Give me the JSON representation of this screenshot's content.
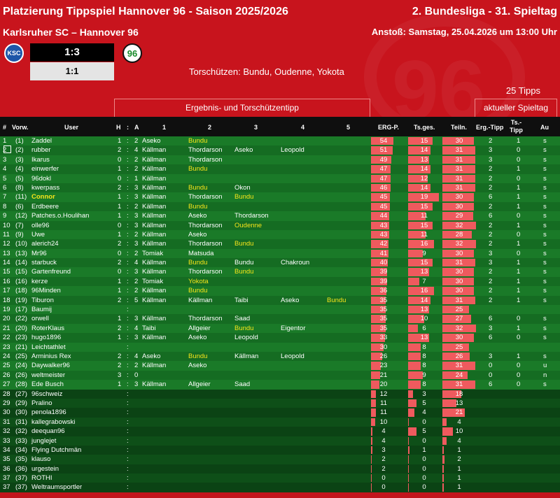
{
  "header": {
    "title": "Platzierung Tippspiel Hannover 96 - Saison 2025/2026",
    "round": "2. Bundesliga - 31. Spieltag",
    "match": "Karlsruher SC – Hannover 96",
    "kickoff": "Anstoß: Samstag, 25.04.2026 um 13:00 Uhr",
    "home_logo": "KSC",
    "away_logo": "96",
    "score_final": "1:3",
    "score_half": "1:1",
    "scorers": "Torschützen: Bundu, Oudenne, Yokota",
    "tipps_count": "25 Tipps",
    "group_tipp": "Ergebnis-  und Torschützentipp",
    "group_current": "aktueller Spieltag"
  },
  "columns": {
    "rank": "#",
    "prev": "Vorw.",
    "user": "User",
    "h": "H",
    "colon": ":",
    "a": "A",
    "s1": "1",
    "s2": "2",
    "s3": "3",
    "s4": "4",
    "s5": "5",
    "erg": "ERG-P.",
    "tsges": "Ts.ges.",
    "teiln": "Teiln.",
    "ergtipp": "Erg.-Tipp",
    "tstipp": "Ts.-\nTipp",
    "au": "Au"
  },
  "colors": {
    "accent": "#c8141d",
    "bar": "#ef5a5e",
    "highlight": "#f6e41a",
    "row_a": "#1a7a28",
    "row_b": "#156c22"
  },
  "rows": [
    {
      "r": "1",
      "p": "(1)",
      "u": "Zaddel",
      "h": "1",
      "a": "2",
      "s": [
        [
          "Aseko",
          0
        ],
        [
          "Bundu",
          1
        ],
        [
          "",
          0
        ],
        [
          "",
          0
        ],
        [
          "",
          0
        ]
      ],
      "erg": 54,
      "ts": 15,
      "tn": 30,
      "et": "2",
      "tt": "1",
      "au": "s"
    },
    {
      "r": "2",
      "p": "(2)",
      "u": "rubber",
      "h": "2",
      "a": "4",
      "s": [
        [
          "Källman",
          0
        ],
        [
          "Thordarson",
          0
        ],
        [
          "Aseko",
          0
        ],
        [
          "Leopold",
          0
        ],
        [
          "",
          0
        ]
      ],
      "erg": 51,
      "ts": 14,
      "tn": 31,
      "et": "3",
      "tt": "0",
      "au": "s",
      "sel": true
    },
    {
      "r": "3",
      "p": "(3)",
      "u": "Ikarus",
      "h": "0",
      "a": "2",
      "s": [
        [
          "Källman",
          0
        ],
        [
          "Thordarson",
          0
        ],
        [
          "",
          0
        ],
        [
          "",
          0
        ],
        [
          "",
          0
        ]
      ],
      "erg": 49,
      "ts": 13,
      "tn": 31,
      "et": "3",
      "tt": "0",
      "au": "s"
    },
    {
      "r": "4",
      "p": "(4)",
      "u": "einwerfer",
      "h": "1",
      "a": "2",
      "s": [
        [
          "Källman",
          0
        ],
        [
          "Bundu",
          1
        ],
        [
          "",
          0
        ],
        [
          "",
          0
        ],
        [
          "",
          0
        ]
      ],
      "erg": 47,
      "ts": 14,
      "tn": 31,
      "et": "2",
      "tt": "1",
      "au": "s"
    },
    {
      "r": "5",
      "p": "(5)",
      "u": "96dokl",
      "h": "0",
      "a": "1",
      "s": [
        [
          "Källman",
          0
        ],
        [
          "",
          0
        ],
        [
          "",
          0
        ],
        [
          "",
          0
        ],
        [
          "",
          0
        ]
      ],
      "erg": 47,
      "ts": 12,
      "tn": 31,
      "et": "2",
      "tt": "0",
      "au": "s"
    },
    {
      "r": "6",
      "p": "(8)",
      "u": "kwerpass",
      "h": "2",
      "a": "3",
      "s": [
        [
          "Källman",
          0
        ],
        [
          "Bundu",
          1
        ],
        [
          "Okon",
          0
        ],
        [
          "",
          0
        ],
        [
          "",
          0
        ]
      ],
      "erg": 46,
      "ts": 14,
      "tn": 31,
      "et": "2",
      "tt": "1",
      "au": "s"
    },
    {
      "r": "7",
      "p": "(11)",
      "u": "Connor",
      "h": "1",
      "a": "3",
      "s": [
        [
          "Källman",
          0
        ],
        [
          "Thordarson",
          0
        ],
        [
          "Bundu",
          1
        ],
        [
          "",
          0
        ],
        [
          "",
          0
        ]
      ],
      "erg": 45,
      "ts": 19,
      "tn": 30,
      "et": "6",
      "tt": "1",
      "au": "s",
      "hl": true
    },
    {
      "r": "8",
      "p": "(6)",
      "u": "Erdbeere",
      "h": "1",
      "a": "2",
      "s": [
        [
          "Källman",
          0
        ],
        [
          "Bundu",
          1
        ],
        [
          "",
          0
        ],
        [
          "",
          0
        ],
        [
          "",
          0
        ]
      ],
      "erg": 45,
      "ts": 15,
      "tn": 30,
      "et": "2",
      "tt": "1",
      "au": "s"
    },
    {
      "r": "9",
      "p": "(12)",
      "u": "Patches.o.Houlihan",
      "h": "1",
      "a": "3",
      "s": [
        [
          "Källman",
          0
        ],
        [
          "Aseko",
          0
        ],
        [
          "Thordarson",
          0
        ],
        [
          "",
          0
        ],
        [
          "",
          0
        ]
      ],
      "erg": 44,
      "ts": 11,
      "tn": 29,
      "et": "6",
      "tt": "0",
      "au": "s"
    },
    {
      "r": "10",
      "p": "(7)",
      "u": "olle96",
      "h": "0",
      "a": "3",
      "s": [
        [
          "Källman",
          0
        ],
        [
          "Thordarson",
          0
        ],
        [
          "Oudenne",
          1
        ],
        [
          "",
          0
        ],
        [
          "",
          0
        ]
      ],
      "erg": 43,
      "ts": 15,
      "tn": 32,
      "et": "2",
      "tt": "1",
      "au": "s"
    },
    {
      "r": "11",
      "p": "(9)",
      "u": "Uwe",
      "h": "1",
      "a": "2",
      "s": [
        [
          "Källman",
          0
        ],
        [
          "Aseko",
          0
        ],
        [
          "",
          0
        ],
        [
          "",
          0
        ],
        [
          "",
          0
        ]
      ],
      "erg": 43,
      "ts": 11,
      "tn": 28,
      "et": "2",
      "tt": "0",
      "au": "s"
    },
    {
      "r": "12",
      "p": "(10)",
      "u": "alerich24",
      "h": "2",
      "a": "3",
      "s": [
        [
          "Källman",
          0
        ],
        [
          "Thordarson",
          0
        ],
        [
          "Bundu",
          1
        ],
        [
          "",
          0
        ],
        [
          "",
          0
        ]
      ],
      "erg": 42,
      "ts": 16,
      "tn": 32,
      "et": "2",
      "tt": "1",
      "au": "s"
    },
    {
      "r": "13",
      "p": "(13)",
      "u": "Mr96",
      "h": "0",
      "a": "2",
      "s": [
        [
          "Tomiak",
          0
        ],
        [
          "Matsuda",
          0
        ],
        [
          "",
          0
        ],
        [
          "",
          0
        ],
        [
          "",
          0
        ]
      ],
      "erg": 41,
      "ts": 9,
      "tn": 30,
      "et": "3",
      "tt": "0",
      "au": "s"
    },
    {
      "r": "14",
      "p": "(14)",
      "u": "starbuck",
      "h": "2",
      "a": "4",
      "s": [
        [
          "Källman",
          0
        ],
        [
          "Bundu",
          1
        ],
        [
          "Bundu",
          0
        ],
        [
          "Chakroun",
          0
        ],
        [
          "",
          0
        ]
      ],
      "erg": 40,
      "ts": 15,
      "tn": 31,
      "et": "3",
      "tt": "1",
      "au": "s"
    },
    {
      "r": "15",
      "p": "(15)",
      "u": "Gartenfreund",
      "h": "0",
      "a": "3",
      "s": [
        [
          "Källman",
          0
        ],
        [
          "Thordarson",
          0
        ],
        [
          "Bundu",
          1
        ],
        [
          "",
          0
        ],
        [
          "",
          0
        ]
      ],
      "erg": 39,
      "ts": 13,
      "tn": 30,
      "et": "2",
      "tt": "1",
      "au": "s"
    },
    {
      "r": "16",
      "p": "(16)",
      "u": "kerze",
      "h": "1",
      "a": "2",
      "s": [
        [
          "Tomiak",
          0
        ],
        [
          "Yokota",
          1
        ],
        [
          "",
          0
        ],
        [
          "",
          0
        ],
        [
          "",
          0
        ]
      ],
      "erg": 39,
      "ts": 7,
      "tn": 30,
      "et": "2",
      "tt": "1",
      "au": "s"
    },
    {
      "r": "17",
      "p": "(18)",
      "u": "96Minden",
      "h": "1",
      "a": "2",
      "s": [
        [
          "Källman",
          0
        ],
        [
          "Bundu",
          1
        ],
        [
          "",
          0
        ],
        [
          "",
          0
        ],
        [
          "",
          0
        ]
      ],
      "erg": 36,
      "ts": 16,
      "tn": 30,
      "et": "2",
      "tt": "1",
      "au": "s"
    },
    {
      "r": "18",
      "p": "(19)",
      "u": "Tiburon",
      "h": "2",
      "a": "5",
      "s": [
        [
          "Källman",
          0
        ],
        [
          "Källman",
          0
        ],
        [
          "Taibi",
          0
        ],
        [
          "Aseko",
          0
        ],
        [
          "Bundu",
          1
        ]
      ],
      "erg": 35,
      "ts": 14,
      "tn": 31,
      "et": "2",
      "tt": "1",
      "au": "s"
    },
    {
      "r": "19",
      "p": "(17)",
      "u": "Baumij",
      "h": "",
      "a": "",
      "s": [
        [
          "",
          0
        ],
        [
          "",
          0
        ],
        [
          "",
          0
        ],
        [
          "",
          0
        ],
        [
          "",
          0
        ]
      ],
      "erg": 35,
      "ts": 13,
      "tn": 25,
      "et": "",
      "tt": "",
      "au": ""
    },
    {
      "r": "20",
      "p": "(22)",
      "u": "orwell",
      "h": "1",
      "a": "3",
      "s": [
        [
          "Källman",
          0
        ],
        [
          "Thordarson",
          0
        ],
        [
          "Saad",
          0
        ],
        [
          "",
          0
        ],
        [
          "",
          0
        ]
      ],
      "erg": 35,
      "ts": 10,
      "tn": 27,
      "et": "6",
      "tt": "0",
      "au": "s"
    },
    {
      "r": "21",
      "p": "(20)",
      "u": "RoterKlaus",
      "h": "2",
      "a": "4",
      "s": [
        [
          "Taibi",
          0
        ],
        [
          "Allgeier",
          0
        ],
        [
          "Bundu",
          1
        ],
        [
          "Eigentor",
          0
        ],
        [
          "",
          0
        ]
      ],
      "erg": 35,
      "ts": 6,
      "tn": 32,
      "et": "3",
      "tt": "1",
      "au": "s"
    },
    {
      "r": "22",
      "p": "(23)",
      "u": "hugo1896",
      "h": "1",
      "a": "3",
      "s": [
        [
          "Källman",
          0
        ],
        [
          "Aseko",
          0
        ],
        [
          "Leopold",
          0
        ],
        [
          "",
          0
        ],
        [
          "",
          0
        ]
      ],
      "erg": 33,
      "ts": 13,
      "tn": 30,
      "et": "6",
      "tt": "0",
      "au": "s"
    },
    {
      "r": "23",
      "p": "(21)",
      "u": "Leichtathlet",
      "h": "",
      "a": "",
      "s": [
        [
          "",
          0
        ],
        [
          "",
          0
        ],
        [
          "",
          0
        ],
        [
          "",
          0
        ],
        [
          "",
          0
        ]
      ],
      "erg": 30,
      "ts": 8,
      "tn": 25,
      "et": "",
      "tt": "",
      "au": ""
    },
    {
      "r": "24",
      "p": "(25)",
      "u": "Arminius Rex",
      "h": "2",
      "a": "4",
      "s": [
        [
          "Aseko",
          0
        ],
        [
          "Bundu",
          1
        ],
        [
          "Källman",
          0
        ],
        [
          "Leopold",
          0
        ],
        [
          "",
          0
        ]
      ],
      "erg": 26,
      "ts": 8,
      "tn": 26,
      "et": "3",
      "tt": "1",
      "au": "s"
    },
    {
      "r": "25",
      "p": "(24)",
      "u": "Daywalker96",
      "h": "2",
      "a": "2",
      "s": [
        [
          "Källman",
          0
        ],
        [
          "Aseko",
          0
        ],
        [
          "",
          0
        ],
        [
          "",
          0
        ],
        [
          "",
          0
        ]
      ],
      "erg": 23,
      "ts": 8,
      "tn": 31,
      "et": "0",
      "tt": "0",
      "au": "u"
    },
    {
      "r": "26",
      "p": "(26)",
      "u": "weltmeister",
      "h": "3",
      "a": "0",
      "s": [
        [
          "",
          0
        ],
        [
          "",
          0
        ],
        [
          "",
          0
        ],
        [
          "",
          0
        ],
        [
          "",
          0
        ]
      ],
      "erg": 21,
      "ts": 9,
      "tn": 24,
      "et": "0",
      "tt": "0",
      "au": "n"
    },
    {
      "r": "27",
      "p": "(28)",
      "u": "Ede Busch",
      "h": "1",
      "a": "3",
      "s": [
        [
          "Källman",
          0
        ],
        [
          "Allgeier",
          0
        ],
        [
          "Saad",
          0
        ],
        [
          "",
          0
        ],
        [
          "",
          0
        ]
      ],
      "erg": 20,
      "ts": 8,
      "tn": 31,
      "et": "6",
      "tt": "0",
      "au": "s"
    },
    {
      "r": "28",
      "p": "(27)",
      "u": "96schweiz",
      "h": "",
      "a": "",
      "s": [
        [
          "",
          0
        ],
        [
          "",
          0
        ],
        [
          "",
          0
        ],
        [
          "",
          0
        ],
        [
          "",
          0
        ]
      ],
      "erg": 12,
      "ts": 3,
      "tn": 18,
      "et": "",
      "tt": "",
      "au": "",
      "low": true
    },
    {
      "r": "29",
      "p": "(29)",
      "u": "Pralino",
      "h": "",
      "a": "",
      "s": [
        [
          "",
          0
        ],
        [
          "",
          0
        ],
        [
          "",
          0
        ],
        [
          "",
          0
        ],
        [
          "",
          0
        ]
      ],
      "erg": 11,
      "ts": 5,
      "tn": 13,
      "et": "",
      "tt": "",
      "au": "",
      "low": true
    },
    {
      "r": "30",
      "p": "(30)",
      "u": "penola1896",
      "h": "",
      "a": "",
      "s": [
        [
          "",
          0
        ],
        [
          "",
          0
        ],
        [
          "",
          0
        ],
        [
          "",
          0
        ],
        [
          "",
          0
        ]
      ],
      "erg": 11,
      "ts": 4,
      "tn": 21,
      "et": "",
      "tt": "",
      "au": "",
      "low": true
    },
    {
      "r": "31",
      "p": "(31)",
      "u": "kallegrabowski",
      "h": "",
      "a": "",
      "s": [
        [
          "",
          0
        ],
        [
          "",
          0
        ],
        [
          "",
          0
        ],
        [
          "",
          0
        ],
        [
          "",
          0
        ]
      ],
      "erg": 10,
      "ts": 0,
      "tn": 4,
      "et": "",
      "tt": "",
      "au": "",
      "low": true
    },
    {
      "r": "32",
      "p": "(32)",
      "u": "deequan96",
      "h": "",
      "a": "",
      "s": [
        [
          "",
          0
        ],
        [
          "",
          0
        ],
        [
          "",
          0
        ],
        [
          "",
          0
        ],
        [
          "",
          0
        ]
      ],
      "erg": 4,
      "ts": 5,
      "tn": 10,
      "et": "",
      "tt": "",
      "au": "",
      "low": true
    },
    {
      "r": "33",
      "p": "(33)",
      "u": "junglejet",
      "h": "",
      "a": "",
      "s": [
        [
          "",
          0
        ],
        [
          "",
          0
        ],
        [
          "",
          0
        ],
        [
          "",
          0
        ],
        [
          "",
          0
        ]
      ],
      "erg": 4,
      "ts": 0,
      "tn": 4,
      "et": "",
      "tt": "",
      "au": "",
      "low": true
    },
    {
      "r": "34",
      "p": "(34)",
      "u": "Flying Dutchmän",
      "h": "",
      "a": "",
      "s": [
        [
          "",
          0
        ],
        [
          "",
          0
        ],
        [
          "",
          0
        ],
        [
          "",
          0
        ],
        [
          "",
          0
        ]
      ],
      "erg": 3,
      "ts": 1,
      "tn": 1,
      "et": "",
      "tt": "",
      "au": "",
      "low": true
    },
    {
      "r": "35",
      "p": "(35)",
      "u": "klauso",
      "h": "",
      "a": "",
      "s": [
        [
          "",
          0
        ],
        [
          "",
          0
        ],
        [
          "",
          0
        ],
        [
          "",
          0
        ],
        [
          "",
          0
        ]
      ],
      "erg": 2,
      "ts": 0,
      "tn": 2,
      "et": "",
      "tt": "",
      "au": "",
      "low": true
    },
    {
      "r": "36",
      "p": "(36)",
      "u": "urgestein",
      "h": "",
      "a": "",
      "s": [
        [
          "",
          0
        ],
        [
          "",
          0
        ],
        [
          "",
          0
        ],
        [
          "",
          0
        ],
        [
          "",
          0
        ]
      ],
      "erg": 2,
      "ts": 0,
      "tn": 1,
      "et": "",
      "tt": "",
      "au": "",
      "low": true
    },
    {
      "r": "37",
      "p": "(37)",
      "u": "ROTHI",
      "h": "",
      "a": "",
      "s": [
        [
          "",
          0
        ],
        [
          "",
          0
        ],
        [
          "",
          0
        ],
        [
          "",
          0
        ],
        [
          "",
          0
        ]
      ],
      "erg": 0,
      "ts": 0,
      "tn": 1,
      "et": "",
      "tt": "",
      "au": "",
      "low": true
    },
    {
      "r": "37",
      "p": "(37)",
      "u": "Weltraumsportler",
      "h": "",
      "a": "",
      "s": [
        [
          "",
          0
        ],
        [
          "",
          0
        ],
        [
          "",
          0
        ],
        [
          "",
          0
        ],
        [
          "",
          0
        ]
      ],
      "erg": 0,
      "ts": 0,
      "tn": 1,
      "et": "",
      "tt": "",
      "au": "",
      "low": true
    }
  ]
}
